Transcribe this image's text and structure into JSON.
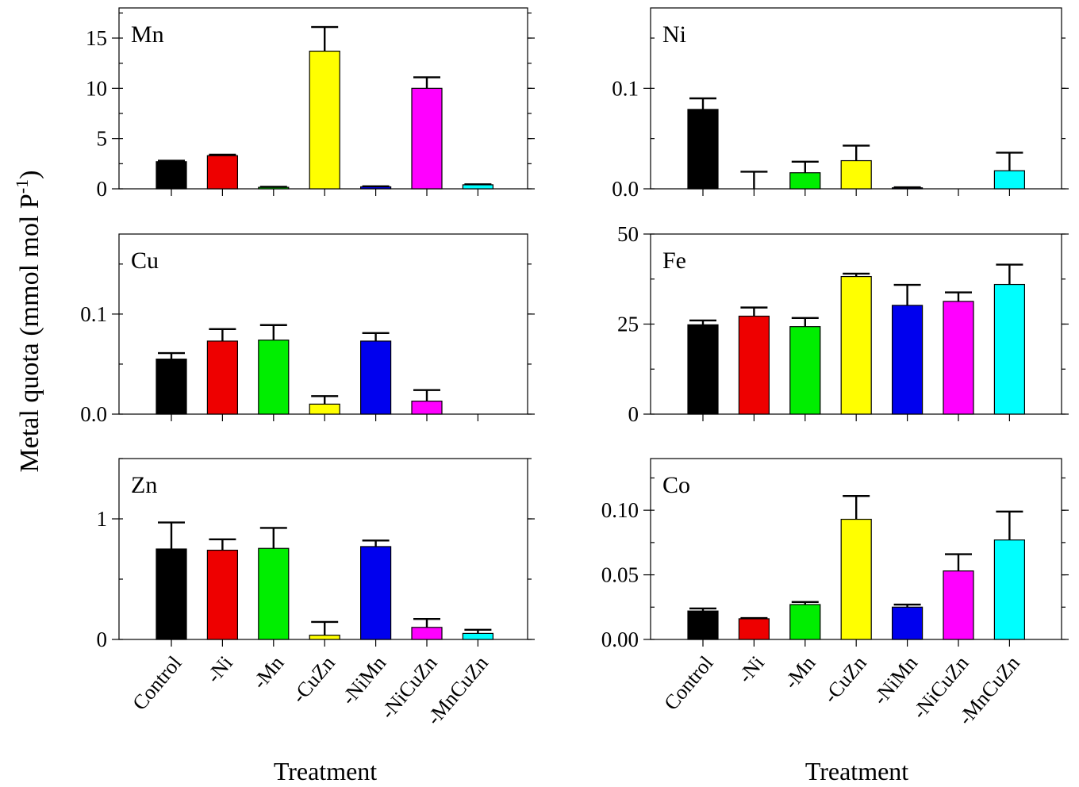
{
  "figure": {
    "ylabel": "Metal quota (mmol mol P",
    "ylabel_sup": "-1",
    "ylabel_close": ")",
    "xlabel_left": "Treatment",
    "xlabel_right": "Treatment"
  },
  "categories": [
    "Control",
    "-Ni",
    "-Mn",
    "-CuZn",
    "-NiMn",
    "-NiCuZn",
    "-MnCuZn"
  ],
  "bar_colors": [
    "#000000",
    "#ee0000",
    "#00ee00",
    "#ffff00",
    "#0000ee",
    "#ff00ff",
    "#00ffff"
  ],
  "chart_data": [
    {
      "type": "bar",
      "title": "Mn",
      "column": "left",
      "row": 0,
      "categories": [
        "Control",
        "-Ni",
        "-Mn",
        "-CuZn",
        "-NiMn",
        "-NiCuZn",
        "-MnCuZn"
      ],
      "values": [
        2.7,
        3.3,
        0.15,
        13.7,
        0.2,
        10.0,
        0.4
      ],
      "errors": [
        0.1,
        0.1,
        0.05,
        2.4,
        0.05,
        1.1,
        0.05
      ],
      "ylim": [
        0,
        18
      ],
      "yticks": [
        0,
        5,
        10,
        15
      ],
      "ytick_labels": [
        "0",
        "5",
        "10",
        "15"
      ],
      "minor_step": 2.5
    },
    {
      "type": "bar",
      "title": "Ni",
      "column": "right",
      "row": 0,
      "categories": [
        "Control",
        "-Ni",
        "-Mn",
        "-CuZn",
        "-NiMn",
        "-NiCuZn",
        "-MnCuZn"
      ],
      "values": [
        0.079,
        0.0,
        0.016,
        0.028,
        0.001,
        0.0,
        0.018
      ],
      "errors": [
        0.011,
        0.017,
        0.011,
        0.015,
        0.0005,
        0.0,
        0.018
      ],
      "ylim": [
        0,
        0.18
      ],
      "yticks": [
        0,
        0.1
      ],
      "ytick_labels": [
        "0.0",
        "0.1"
      ],
      "minor_step": 0.05
    },
    {
      "type": "bar",
      "title": "Cu",
      "column": "left",
      "row": 1,
      "categories": [
        "Control",
        "-Ni",
        "-Mn",
        "-CuZn",
        "-NiMn",
        "-NiCuZn",
        "-MnCuZn"
      ],
      "values": [
        0.055,
        0.073,
        0.074,
        0.01,
        0.073,
        0.013,
        0.0
      ],
      "errors": [
        0.006,
        0.012,
        0.015,
        0.008,
        0.008,
        0.011,
        0.0
      ],
      "ylim": [
        0,
        0.18
      ],
      "yticks": [
        0,
        0.1
      ],
      "ytick_labels": [
        "0.0",
        "0.1"
      ],
      "minor_step": 0.05
    },
    {
      "type": "bar",
      "title": "Fe",
      "column": "right",
      "row": 1,
      "categories": [
        "Control",
        "-Ni",
        "-Mn",
        "-CuZn",
        "-NiMn",
        "-NiCuZn",
        "-MnCuZn"
      ],
      "values": [
        24.8,
        27.2,
        24.3,
        38.2,
        30.2,
        31.3,
        36.0
      ],
      "errors": [
        1.2,
        2.4,
        2.4,
        0.8,
        5.7,
        2.5,
        5.5
      ],
      "ylim": [
        0,
        50
      ],
      "yticks": [
        0,
        25,
        50
      ],
      "ytick_labels": [
        "0",
        "25",
        "50"
      ],
      "minor_step": 12.5
    },
    {
      "type": "bar",
      "title": "Zn",
      "column": "left",
      "row": 2,
      "categories": [
        "Control",
        "-Ni",
        "-Mn",
        "-CuZn",
        "-NiMn",
        "-NiCuZn",
        "-MnCuZn"
      ],
      "values": [
        0.75,
        0.74,
        0.755,
        0.035,
        0.77,
        0.1,
        0.05
      ],
      "errors": [
        0.22,
        0.09,
        0.17,
        0.11,
        0.05,
        0.07,
        0.03
      ],
      "ylim": [
        0,
        1.5
      ],
      "yticks": [
        0,
        1
      ],
      "ytick_labels": [
        "0",
        "1"
      ],
      "minor_step": 0.5
    },
    {
      "type": "bar",
      "title": "Co",
      "column": "right",
      "row": 2,
      "categories": [
        "Control",
        "-Ni",
        "-Mn",
        "-CuZn",
        "-NiMn",
        "-NiCuZn",
        "-MnCuZn"
      ],
      "values": [
        0.022,
        0.016,
        0.027,
        0.093,
        0.025,
        0.053,
        0.077
      ],
      "errors": [
        0.002,
        0.0005,
        0.002,
        0.018,
        0.002,
        0.013,
        0.022
      ],
      "ylim": [
        0,
        0.14
      ],
      "yticks": [
        0,
        0.05,
        0.1
      ],
      "ytick_labels": [
        "0.00",
        "0.05",
        "0.10"
      ],
      "minor_step": 0.025
    }
  ]
}
